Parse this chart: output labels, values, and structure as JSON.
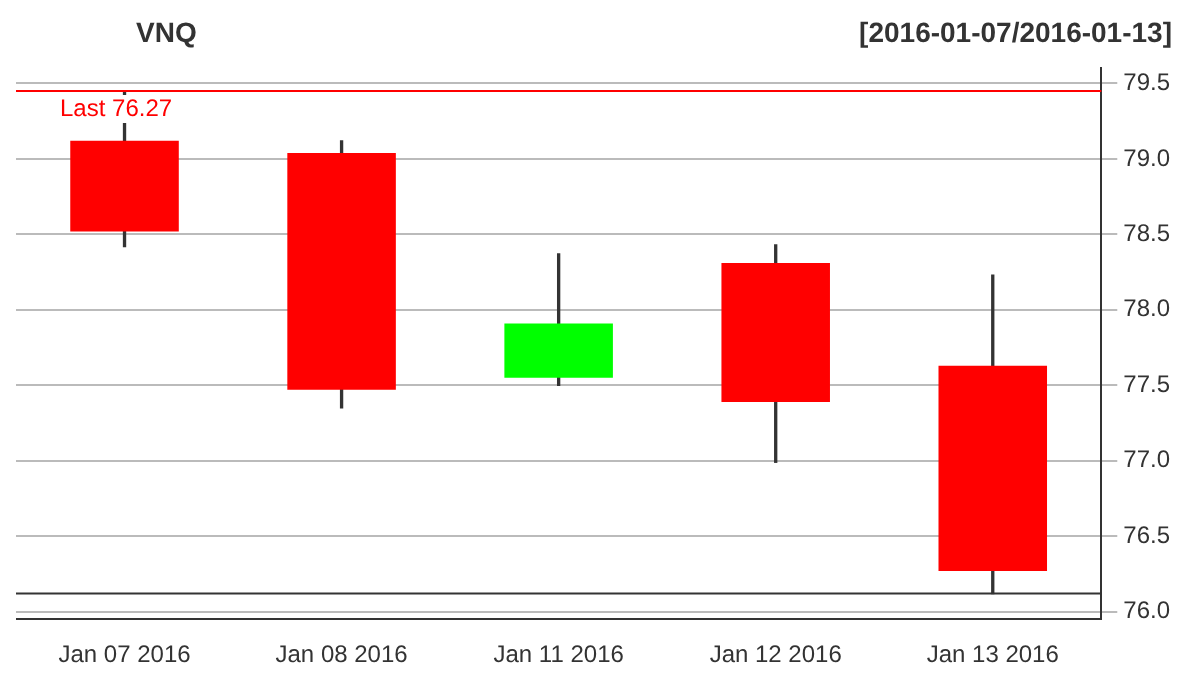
{
  "chart_data": {
    "type": "candlestick",
    "title": "VNQ",
    "subtitle": "[2016-01-07/2016-01-13]",
    "categories": [
      "Jan 07 2016",
      "Jan 08 2016",
      "Jan 11 2016",
      "Jan 12 2016",
      "Jan 13 2016"
    ],
    "ohlc": [
      [
        79.12,
        79.45,
        78.42,
        78.52
      ],
      [
        79.04,
        79.12,
        77.35,
        77.47
      ],
      [
        77.55,
        78.37,
        77.5,
        77.91
      ],
      [
        78.31,
        78.43,
        76.99,
        77.39
      ],
      [
        77.63,
        78.23,
        76.12,
        76.27
      ]
    ],
    "colors": [
      "#ff0000",
      "#ff0000",
      "#00ff00",
      "#ff0000",
      "#ff0000"
    ],
    "ylim": [
      75.95,
      79.6
    ],
    "yticks": [
      {
        "value": 76,
        "label": "76.0"
      },
      {
        "value": 76.5,
        "label": "76.5"
      },
      {
        "value": 77,
        "label": "77.0"
      },
      {
        "value": 77.5,
        "label": "77.5"
      },
      {
        "value": 78,
        "label": "78.0"
      },
      {
        "value": 78.5,
        "label": "78.5"
      },
      {
        "value": 79,
        "label": "79.0"
      },
      {
        "value": 79.5,
        "label": "79.5"
      }
    ],
    "grid": "y",
    "ref_lines": [
      {
        "axis": "y",
        "value": 79.45,
        "label": "Last 76.27",
        "color": "#ff0000"
      },
      {
        "axis": "y",
        "value": 76.12,
        "color": "#333333"
      }
    ]
  }
}
